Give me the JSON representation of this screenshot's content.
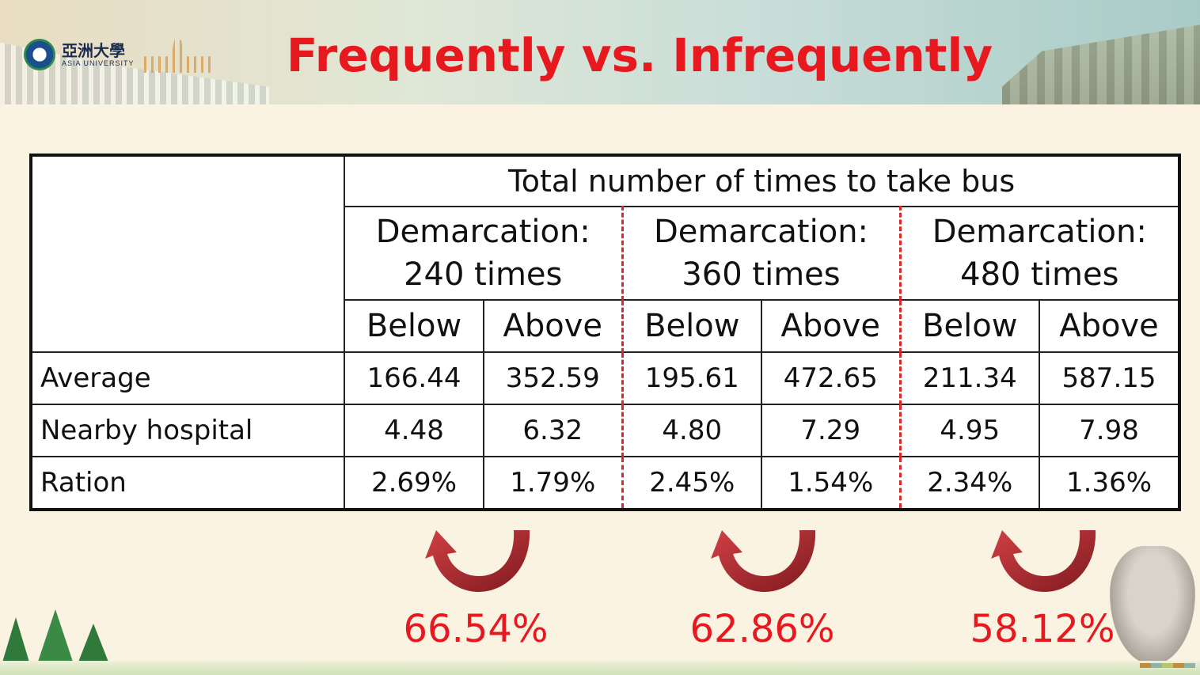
{
  "header": {
    "title": "Frequently vs. Infrequently",
    "logo": {
      "name_zh": "亞洲大學",
      "name_en": "ASIA UNIVERSITY"
    }
  },
  "table": {
    "main_header": "Total number of times to take bus",
    "groups": [
      {
        "line1": "Demarcation:",
        "line2": "240 times"
      },
      {
        "line1": "Demarcation:",
        "line2": "360 times"
      },
      {
        "line1": "Demarcation:",
        "line2": "480 times"
      }
    ],
    "sub_headers": [
      "Below",
      "Above",
      "Below",
      "Above",
      "Below",
      "Above"
    ],
    "rows": [
      {
        "label": "Average",
        "values": [
          "166.44",
          "352.59",
          "195.61",
          "472.65",
          "211.34",
          "587.15"
        ]
      },
      {
        "label": "Nearby hospital",
        "values": [
          "4.48",
          "6.32",
          "4.80",
          "7.29",
          "4.95",
          "7.98"
        ]
      },
      {
        "label": "Ration",
        "values": [
          "2.69%",
          "1.79%",
          "2.45%",
          "1.54%",
          "2.34%",
          "1.36%"
        ]
      }
    ]
  },
  "comparisons": [
    "66.54%",
    "62.86%",
    "58.12%"
  ],
  "colors": {
    "title": "#e8181f",
    "divider": "#d42a2a",
    "arrow": "#b3282d"
  },
  "icons": [
    "curved-arrow-icon",
    "tree-icon",
    "statue-icon",
    "university-seal-icon"
  ]
}
